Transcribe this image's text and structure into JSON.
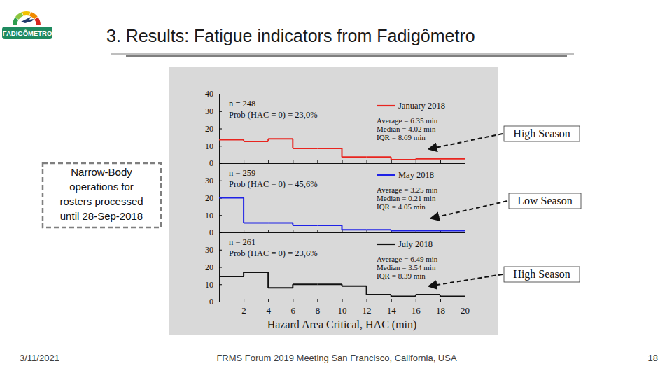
{
  "slide": {
    "logo_text": "FADIGÔMETRO",
    "title": "3. Results: Fatigue indicators from Fadigômetro",
    "side_note": [
      "Narrow-Body",
      "operations for",
      "rosters processed",
      "until 28-Sep-2018"
    ],
    "callouts": [
      "High Season",
      "Low Season",
      "High Season"
    ],
    "footer": {
      "date": "3/11/2021",
      "event": "FRMS Forum 2019 Meeting San Francisco, California, USA",
      "page": "18"
    }
  },
  "chart_data": [
    {
      "type": "histogram",
      "bins": [
        0,
        2,
        4,
        6,
        8,
        10,
        12,
        14,
        16,
        18,
        20
      ],
      "series": [
        {
          "name": "January 2018",
          "color": "#e8251f",
          "values": [
            13.5,
            12.5,
            14,
            8.5,
            8.5,
            3.5,
            3.5,
            2,
            2.5,
            2.5
          ]
        }
      ],
      "xlim": [
        0,
        20
      ],
      "ylim": [
        0,
        40
      ],
      "xticks": [
        2,
        4,
        6,
        8,
        10,
        12,
        14,
        16,
        18,
        20
      ],
      "yticks": [
        0,
        10,
        20,
        30,
        40
      ],
      "tick_labels": "y",
      "legend": "top right",
      "annotations": [
        "n = 248",
        "Prob (HAC = 0) = 23,0%",
        "Average = 6.35 min",
        "Median = 4.02 min",
        "IQR = 8.69 min"
      ]
    },
    {
      "type": "histogram",
      "bins": [
        0,
        2,
        4,
        6,
        8,
        10,
        12,
        14,
        16,
        18,
        20
      ],
      "series": [
        {
          "name": "May 2018",
          "color": "#1f22e6",
          "values": [
            20,
            5.5,
            5.5,
            4,
            4,
            1.5,
            1.5,
            1,
            1,
            1
          ]
        }
      ],
      "xlim": [
        0,
        20
      ],
      "ylim": [
        0,
        40
      ],
      "xticks": [
        2,
        4,
        6,
        8,
        10,
        12,
        14,
        16,
        18,
        20
      ],
      "yticks": [
        0,
        10,
        20,
        30
      ],
      "tick_labels": "y",
      "legend": "top right",
      "annotations": [
        "n = 259",
        "Prob (HAC = 0) = 45,6%",
        "Average = 3.25 min",
        "Median = 0.21 min",
        "IQR = 4.05 min"
      ]
    },
    {
      "type": "histogram",
      "bins": [
        0,
        2,
        4,
        6,
        8,
        10,
        12,
        14,
        16,
        18,
        20
      ],
      "series": [
        {
          "name": "July 2018",
          "color": "#111111",
          "values": [
            14.5,
            17,
            8,
            10,
            10,
            9,
            4,
            3,
            4,
            3
          ]
        }
      ],
      "xlim": [
        0,
        20
      ],
      "ylim": [
        0,
        40
      ],
      "xticks": [
        2,
        4,
        6,
        8,
        10,
        12,
        14,
        16,
        18,
        20
      ],
      "yticks": [
        0,
        10,
        20,
        30
      ],
      "x_label": "Hazard Area Critical, HAC (min)",
      "legend": "top right",
      "annotations": [
        "n = 261",
        "Prob (HAC = 0) = 23,6%",
        "Average = 6.49 min",
        "Median = 3.54 min",
        "IQR = 8.39 min"
      ]
    }
  ]
}
